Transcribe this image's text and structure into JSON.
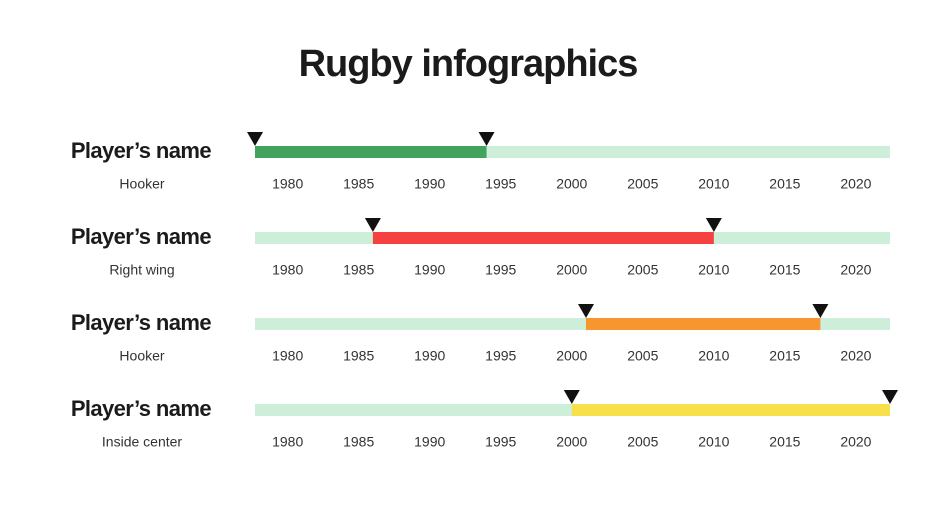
{
  "title": "Rugby infographics",
  "chart_data": [
    {
      "type": "timeline",
      "title": "Player’s name",
      "subtitle": "Hooker",
      "xlim": [
        1977.7,
        2022.4
      ],
      "xticks": [
        1980,
        1985,
        1990,
        1995,
        2000,
        2005,
        2010,
        2015,
        2020
      ],
      "start": 1977.7,
      "end": 1994,
      "color": "#43a25e",
      "track_color": "#cdefd9"
    },
    {
      "type": "timeline",
      "title": "Player’s name",
      "subtitle": "Right wing",
      "xlim": [
        1977.7,
        2022.4
      ],
      "xticks": [
        1980,
        1985,
        1990,
        1995,
        2000,
        2005,
        2010,
        2015,
        2020
      ],
      "start": 1986,
      "end": 2010,
      "color": "#f5413f",
      "track_color": "#cdefd9"
    },
    {
      "type": "timeline",
      "title": "Player’s name",
      "subtitle": "Hooker",
      "xlim": [
        1977.7,
        2022.4
      ],
      "xticks": [
        1980,
        1985,
        1990,
        1995,
        2000,
        2005,
        2010,
        2015,
        2020
      ],
      "start": 2001,
      "end": 2017.5,
      "color": "#f7962f",
      "track_color": "#cdefd9"
    },
    {
      "type": "timeline",
      "title": "Player’s name",
      "subtitle": "Inside center",
      "xlim": [
        1977.7,
        2022.4
      ],
      "xticks": [
        1980,
        1985,
        1990,
        1995,
        2000,
        2005,
        2010,
        2015,
        2020
      ],
      "start": 2000,
      "end": 2022.4,
      "color": "#f8e04a",
      "track_color": "#cdefd9"
    }
  ]
}
